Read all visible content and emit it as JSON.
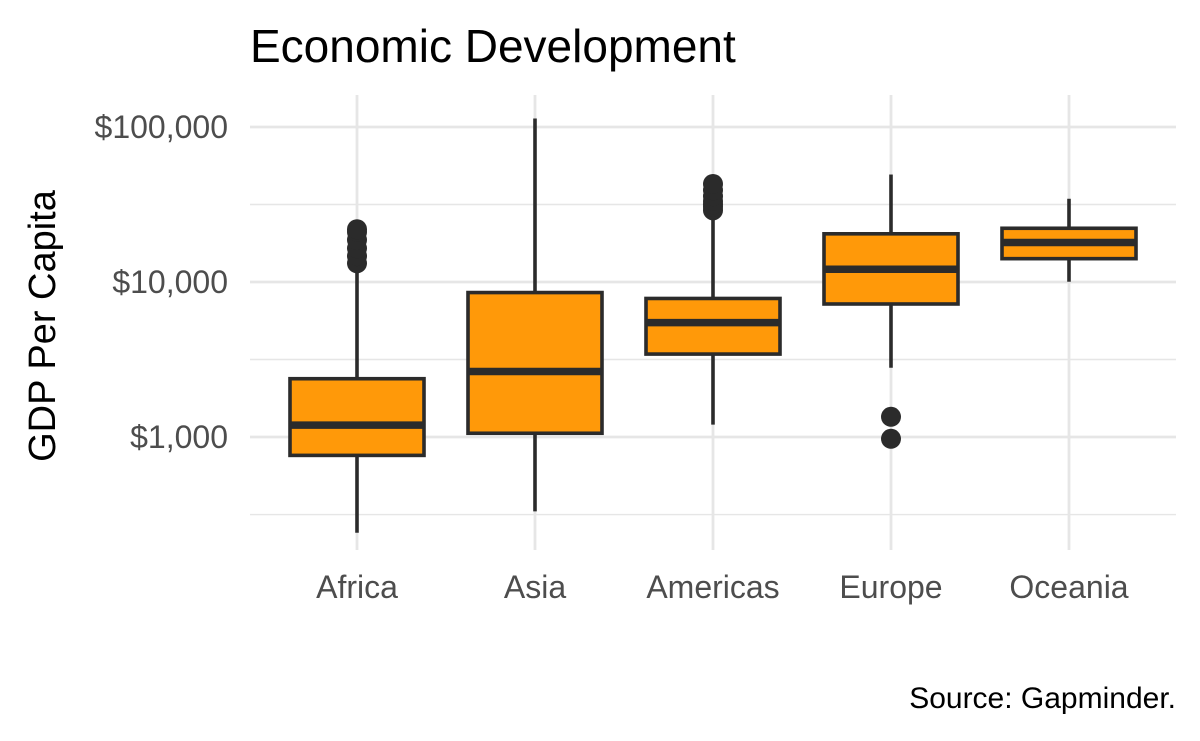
{
  "chart_data": {
    "type": "box",
    "title": "Economic Development",
    "ylabel": "GDP Per Capita",
    "xlabel": "",
    "caption": "Source: Gapminder.",
    "yscale": "log10",
    "ylim": [
      160,
      160000
    ],
    "yticks": [
      {
        "value": 1000,
        "label": "$1,000"
      },
      {
        "value": 10000,
        "label": "$10,000"
      },
      {
        "value": 100000,
        "label": "$100,000"
      }
    ],
    "minor_gridlines": [
      316,
      3162,
      31623
    ],
    "grid": true,
    "categories": [
      "Africa",
      "Asia",
      "Americas",
      "Europe",
      "Oceania"
    ],
    "boxes": [
      {
        "category": "Africa",
        "min": 241,
        "q1": 761,
        "median": 1192,
        "q3": 2377,
        "max": 13000,
        "outliers": [
          13200,
          14700,
          16500,
          18700,
          21000,
          21900
        ]
      },
      {
        "category": "Asia",
        "min": 331,
        "q1": 1057,
        "median": 2647,
        "q3": 8549,
        "max": 113523,
        "outliers": []
      },
      {
        "category": "Americas",
        "min": 1202,
        "q1": 3428,
        "median": 5466,
        "q3": 7830,
        "max": 27500,
        "outliers": [
          29000,
          30500,
          31800,
          33300,
          35800,
          39100,
          42900
        ]
      },
      {
        "category": "Europe",
        "min": 2800,
        "q1": 7213,
        "median": 12082,
        "q3": 20461,
        "max": 49357,
        "outliers": [
          974,
          1350
        ]
      },
      {
        "category": "Oceania",
        "min": 10040,
        "q1": 14142,
        "median": 17983,
        "q3": 22214,
        "max": 34435,
        "outliers": []
      }
    ],
    "colors": {
      "fill": "#ff9909",
      "stroke": "#2b2b2b",
      "grid": "#e6e6e6",
      "tick_text": "#4d4d4d"
    }
  }
}
